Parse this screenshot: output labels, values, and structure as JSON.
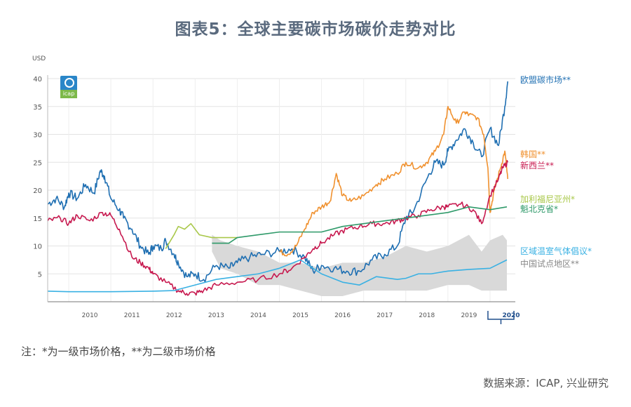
{
  "page": {
    "title": "图表5：全球主要碳市场碳价走势对比",
    "footnote": "注：*为一级市场价格，**为二级市场价格",
    "source": "数据来源：ICAP, 兴业研究",
    "logo_text": "icap"
  },
  "chart_data": {
    "type": "line",
    "title": "",
    "ylabel": "USD",
    "xlabel": "",
    "ylim": [
      0,
      40
    ],
    "xlim": [
      2009.5,
      2020.6
    ],
    "yticks": [
      5,
      10,
      15,
      20,
      25,
      30,
      35,
      40
    ],
    "xticks": [
      "2010",
      "2011",
      "2012",
      "2013",
      "2014",
      "2015",
      "2016",
      "2017",
      "2018",
      "2019",
      "2020"
    ],
    "highlight_year": "2020",
    "grid": true,
    "legend_position": "right (labels at line ends)",
    "band": {
      "name": "中国试点地区**",
      "color": "#d9d9d9",
      "x": [
        2013.4,
        2013.6,
        2014.0,
        2014.5,
        2015.0,
        2015.5,
        2016.0,
        2016.5,
        2017.0,
        2017.5,
        2018.0,
        2018.5,
        2019.0,
        2019.5,
        2019.8,
        2020.0,
        2020.3,
        2020.4
      ],
      "upper": [
        12,
        11,
        10,
        9,
        7,
        7,
        6,
        7,
        7,
        8,
        10,
        9,
        10,
        12,
        9,
        11,
        12,
        11
      ],
      "lower": [
        9,
        6,
        5,
        3,
        3,
        2,
        1,
        1,
        2,
        2,
        2,
        2,
        3,
        3,
        2,
        2,
        2,
        2
      ]
    },
    "series": [
      {
        "name": "欧盟碳市场**",
        "color": "#1f6fb2",
        "x": [
          2009.5,
          2009.7,
          2009.9,
          2010.0,
          2010.2,
          2010.4,
          2010.6,
          2010.75,
          2010.85,
          2011.0,
          2011.2,
          2011.3,
          2011.5,
          2011.7,
          2011.9,
          2012.0,
          2012.2,
          2012.3,
          2012.5,
          2012.6,
          2012.8,
          2013.0,
          2013.2,
          2013.5,
          2013.8,
          2014.0,
          2014.3,
          2014.6,
          2015.0,
          2015.3,
          2015.6,
          2015.8,
          2016.0,
          2016.3,
          2016.6,
          2016.9,
          2017.2,
          2017.5,
          2017.8,
          2018.0,
          2018.2,
          2018.5,
          2018.7,
          2018.9,
          2019.0,
          2019.2,
          2019.4,
          2019.6,
          2019.8,
          2020.0,
          2020.2,
          2020.35,
          2020.42
        ],
        "values": [
          17.5,
          18.5,
          17.0,
          19.5,
          18.5,
          21.0,
          19.5,
          23.5,
          22.5,
          18.5,
          16.5,
          15.0,
          13.0,
          10.0,
          8.5,
          10.0,
          9.5,
          11.0,
          8.5,
          7.0,
          4.5,
          5.0,
          4.0,
          6.5,
          6.0,
          7.0,
          8.0,
          8.5,
          9.0,
          9.5,
          8.0,
          5.5,
          6.5,
          6.0,
          5.5,
          5.5,
          7.5,
          8.5,
          10.0,
          15.0,
          16.5,
          22.0,
          25.0,
          24.5,
          27.0,
          29.0,
          31.0,
          28.5,
          26.0,
          31.0,
          28.0,
          35.0,
          39.5
        ]
      },
      {
        "name": "韩国**",
        "color": "#f0912f",
        "x": [
          2015.0,
          2015.2,
          2015.4,
          2015.6,
          2015.8,
          2016.0,
          2016.2,
          2016.35,
          2016.5,
          2016.7,
          2017.0,
          2017.3,
          2017.5,
          2017.8,
          2018.0,
          2018.3,
          2018.5,
          2018.7,
          2018.9,
          2019.0,
          2019.2,
          2019.4,
          2019.5,
          2019.7,
          2019.85,
          2019.95,
          2020.0,
          2020.1,
          2020.25,
          2020.35,
          2020.42
        ],
        "values": [
          9.0,
          8.5,
          10.0,
          13.0,
          16.0,
          17.0,
          18.0,
          23.0,
          19.0,
          18.0,
          19.0,
          21.0,
          22.0,
          23.0,
          25.0,
          24.0,
          25.0,
          27.0,
          30.0,
          35.0,
          32.0,
          34.0,
          33.5,
          33.0,
          30.0,
          24.0,
          16.0,
          20.0,
          24.0,
          27.0,
          22.0
        ]
      },
      {
        "name": "新西兰**",
        "color": "#c7194f",
        "x": [
          2009.5,
          2009.8,
          2010.0,
          2010.2,
          2010.5,
          2010.8,
          2011.0,
          2011.2,
          2011.5,
          2011.7,
          2011.9,
          2012.0,
          2012.3,
          2012.6,
          2012.8,
          2013.0,
          2013.2,
          2013.5,
          2014.0,
          2014.5,
          2015.0,
          2015.3,
          2015.6,
          2015.8,
          2016.0,
          2016.3,
          2016.6,
          2016.9,
          2017.2,
          2017.5,
          2017.8,
          2018.0,
          2018.3,
          2018.6,
          2018.9,
          2019.0,
          2019.3,
          2019.6,
          2019.8,
          2020.0,
          2020.2,
          2020.3,
          2020.42
        ],
        "values": [
          14.5,
          15.0,
          14.0,
          15.5,
          14.5,
          16.0,
          15.5,
          13.0,
          8.0,
          7.0,
          6.0,
          5.0,
          3.5,
          2.0,
          1.5,
          1.5,
          2.0,
          3.0,
          3.5,
          4.0,
          5.0,
          6.0,
          8.0,
          9.5,
          10.5,
          12.0,
          13.0,
          13.5,
          14.0,
          14.0,
          14.5,
          15.0,
          15.5,
          16.5,
          17.0,
          17.0,
          17.5,
          16.5,
          14.0,
          19.0,
          22.0,
          24.0,
          25.0
        ]
      },
      {
        "name": "加利福尼亚州*",
        "color": "#a9c84a",
        "x": [
          2012.3,
          2012.5,
          2012.6,
          2012.75,
          2012.9,
          2013.1,
          2013.4,
          2013.7,
          2014.0
        ],
        "values": [
          9.5,
          12.0,
          13.5,
          13.0,
          14.0,
          12.0,
          11.5,
          11.5,
          11.5
        ]
      },
      {
        "name": "魁北克省*",
        "color": "#2f9a6a",
        "x": [
          2013.4,
          2013.8,
          2014.0,
          2014.5,
          2015.0,
          2015.5,
          2016.0,
          2016.5,
          2017.0,
          2017.5,
          2018.0,
          2018.5,
          2019.0,
          2019.5,
          2020.0,
          2020.4
        ],
        "values": [
          10.5,
          10.5,
          11.5,
          12.0,
          12.5,
          12.5,
          12.5,
          13.5,
          14.0,
          14.5,
          15.0,
          15.5,
          16.0,
          17.0,
          16.5,
          17.0
        ]
      },
      {
        "name": "区域温室气体倡议*",
        "color": "#3ab1e3",
        "x": [
          2009.5,
          2010.0,
          2011.0,
          2012.0,
          2012.5,
          2013.0,
          2013.5,
          2014.0,
          2014.5,
          2015.0,
          2015.5,
          2016.0,
          2016.5,
          2016.9,
          2017.3,
          2017.8,
          2018.0,
          2018.3,
          2018.6,
          2019.0,
          2019.5,
          2020.0,
          2020.4
        ],
        "values": [
          1.9,
          1.8,
          1.8,
          1.9,
          2.0,
          3.0,
          4.0,
          4.5,
          5.0,
          6.0,
          7.5,
          5.0,
          3.5,
          3.0,
          4.5,
          4.0,
          4.2,
          5.0,
          5.0,
          5.5,
          5.8,
          6.0,
          7.5
        ]
      }
    ]
  }
}
